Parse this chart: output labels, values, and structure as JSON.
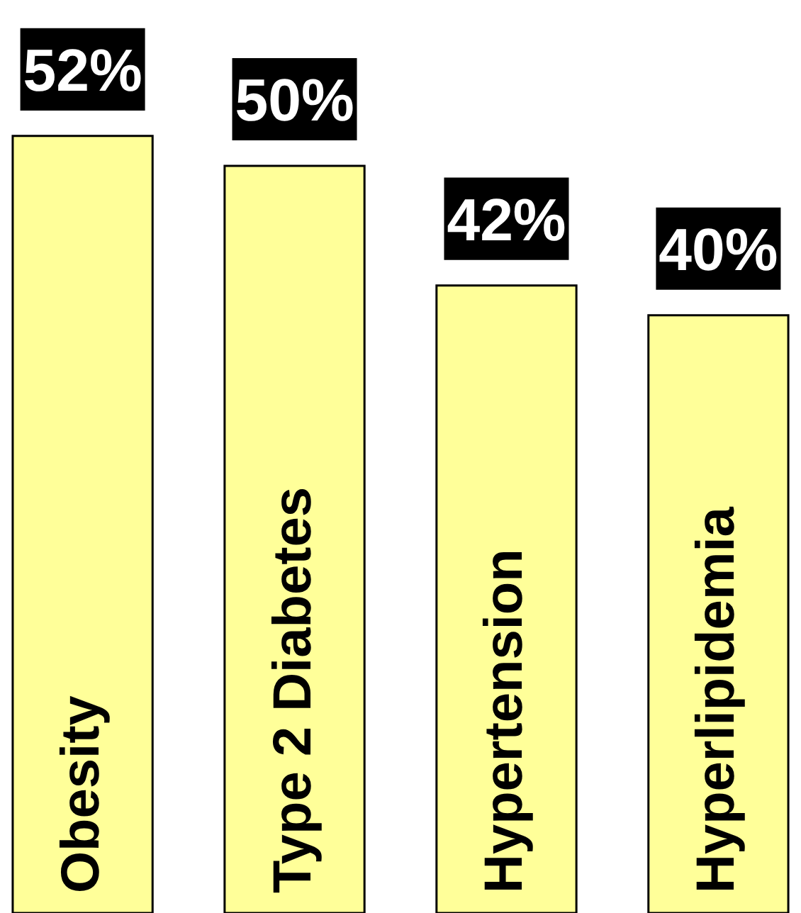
{
  "chart_data": {
    "type": "bar",
    "categories": [
      "Obesity",
      "Type 2 Diabetes",
      "Hypertension",
      "Hyperlipidemia"
    ],
    "values": [
      52,
      50,
      42,
      40
    ],
    "color": "#ffff99",
    "value_labels": [
      "52%",
      "50%",
      "42%",
      "40%"
    ]
  }
}
